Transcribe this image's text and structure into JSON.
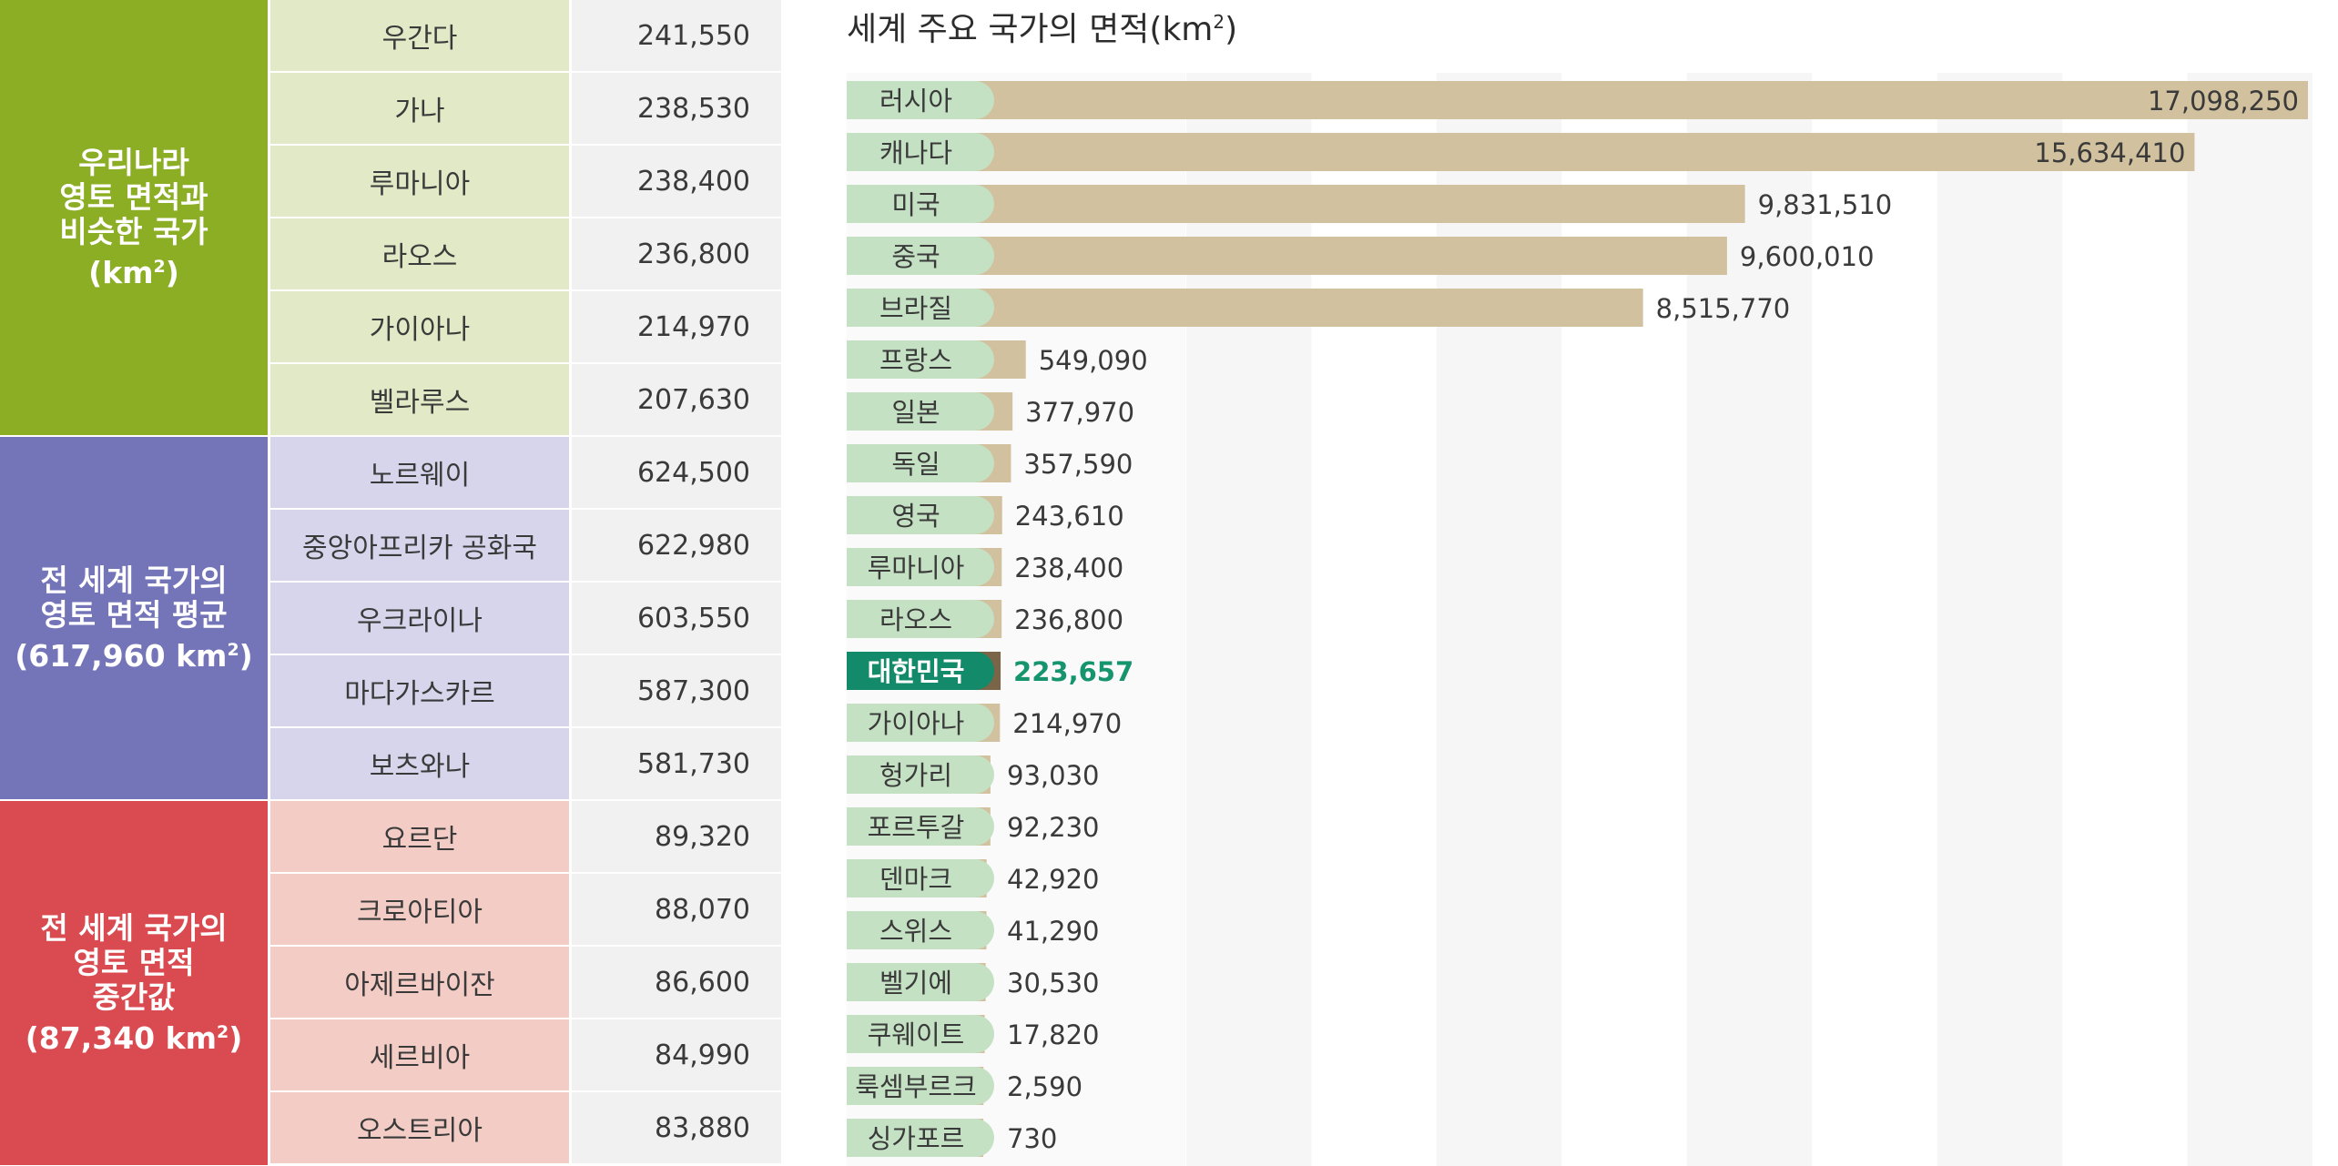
{
  "left_table": {
    "groups": [
      {
        "label_lines": [
          "우리나라",
          "영토 면적과",
          "비슷한 국가"
        ],
        "unit_base": "(km",
        "unit_sup": "2",
        "unit_close": ")",
        "color": "#8cae25",
        "light": "#e2e9c7",
        "rows": [
          {
            "name": "우간다",
            "value": "241,550"
          },
          {
            "name": "가나",
            "value": "238,530"
          },
          {
            "name": "루마니아",
            "value": "238,400"
          },
          {
            "name": "라오스",
            "value": "236,800"
          },
          {
            "name": "가이아나",
            "value": "214,970"
          },
          {
            "name": "벨라루스",
            "value": "207,630"
          }
        ]
      },
      {
        "label_lines": [
          "전 세계 국가의",
          "영토 면적 평균"
        ],
        "unit_base": "(617,960 km",
        "unit_sup": "2",
        "unit_close": ")",
        "color": "#7474b8",
        "light": "#d6d5ec",
        "rows": [
          {
            "name": "노르웨이",
            "value": "624,500"
          },
          {
            "name": "중앙아프리카 공화국",
            "value": "622,980"
          },
          {
            "name": "우크라이나",
            "value": "603,550"
          },
          {
            "name": "마다가스카르",
            "value": "587,300"
          },
          {
            "name": "보츠와나",
            "value": "581,730"
          }
        ]
      },
      {
        "label_lines": [
          "전 세계 국가의",
          "영토 면적",
          "중간값"
        ],
        "unit_base": "(87,340 km",
        "unit_sup": "2",
        "unit_close": ")",
        "color": "#d94b50",
        "light": "#f3cdc5",
        "rows": [
          {
            "name": "요르단",
            "value": "89,320"
          },
          {
            "name": "크로아티아",
            "value": "88,070"
          },
          {
            "name": "아제르바이잔",
            "value": "86,600"
          },
          {
            "name": "세르비아",
            "value": "84,990"
          },
          {
            "name": "오스트리아",
            "value": "83,880"
          }
        ]
      }
    ]
  },
  "chart_data": {
    "type": "bar",
    "orientation": "horizontal",
    "title_base": "세계 주요 국가의 면적(km",
    "title_sup": "2",
    "title_close": ")",
    "categories": [
      "러시아",
      "캐나다",
      "미국",
      "중국",
      "브라질",
      "프랑스",
      "일본",
      "독일",
      "영국",
      "루마니아",
      "라오스",
      "대한민국",
      "가이아나",
      "헝가리",
      "포르투갈",
      "덴마크",
      "스위스",
      "벨기에",
      "쿠웨이트",
      "룩셈부르크",
      "싱가포르"
    ],
    "values": [
      17098250,
      15634410,
      9831510,
      9600010,
      8515770,
      549090,
      377970,
      357590,
      243610,
      238400,
      236800,
      223657,
      214970,
      93030,
      92230,
      42920,
      41290,
      30530,
      17820,
      2590,
      730
    ],
    "value_labels": [
      "17,098,250",
      "15,634,410",
      "9,831,510",
      "9,600,010",
      "8,515,770",
      "549,090",
      "377,970",
      "357,590",
      "243,610",
      "238,400",
      "236,800",
      "223,657",
      "214,970",
      "93,030",
      "92,230",
      "42,920",
      "41,290",
      "30,530",
      "17,820",
      "2,590",
      "730"
    ],
    "highlight": "대한민국",
    "colors": {
      "bar": "#d1c19e",
      "label_bg": "#c4e1c3",
      "highlight_bg": "#138a69",
      "highlight_bar": "#7a6548",
      "highlight_text": "#16946e",
      "stripe": "#f6f6f6"
    },
    "xlim": [
      0,
      18000000
    ],
    "grid_bands": 6,
    "grid": true
  }
}
